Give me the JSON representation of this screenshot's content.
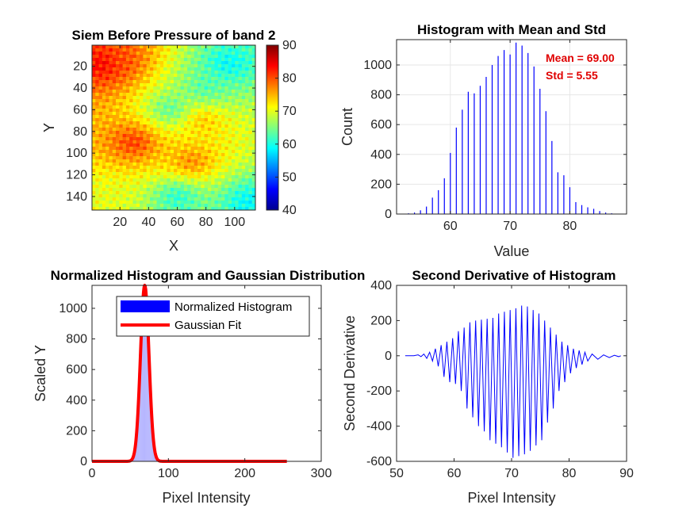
{
  "chart_data": [
    {
      "type": "heatmap",
      "title": "Siem Before Pressure of band 2",
      "xlabel": "X",
      "ylabel": "Y",
      "xlim": [
        0.5,
        114.5
      ],
      "ylim": [
        0.5,
        152.5
      ],
      "y_reversed": true,
      "xticks": [
        20,
        40,
        60,
        80,
        100
      ],
      "yticks": [
        20,
        40,
        60,
        80,
        100,
        120,
        140
      ],
      "colorbar": {
        "range": [
          40,
          90
        ],
        "ticks": [
          40,
          50,
          60,
          70,
          80,
          90
        ],
        "colormap": "jet"
      },
      "value_blobs": [
        {
          "x": 8,
          "y": 18,
          "value": 85
        },
        {
          "x": 20,
          "y": 15,
          "value": 80
        },
        {
          "x": 30,
          "y": 90,
          "value": 82
        },
        {
          "x": 70,
          "y": 108,
          "value": 78
        },
        {
          "x": 78,
          "y": 70,
          "value": 75
        },
        {
          "x": 95,
          "y": 18,
          "value": 58
        },
        {
          "x": 80,
          "y": 40,
          "value": 62
        },
        {
          "x": 55,
          "y": 60,
          "value": 62
        },
        {
          "x": 60,
          "y": 140,
          "value": 60
        },
        {
          "x": 110,
          "y": 145,
          "value": 58
        },
        {
          "x": 10,
          "y": 140,
          "value": 70
        }
      ]
    },
    {
      "type": "bar",
      "title": "Histogram with Mean and Std",
      "xlabel": "Value",
      "ylabel": "Count",
      "xlim": [
        51,
        89.5
      ],
      "ylim": [
        0,
        1170
      ],
      "xticks": [
        60,
        70,
        80
      ],
      "yticks": [
        0,
        200,
        400,
        600,
        800,
        1000
      ],
      "grid": true,
      "annotations": [
        "Mean = 69.00",
        "Std = 5.55"
      ],
      "x": [
        53,
        54,
        55,
        56,
        57,
        58,
        59,
        60,
        61,
        62,
        63,
        64,
        65,
        66,
        67,
        68,
        69,
        70,
        71,
        72,
        73,
        74,
        75,
        76,
        77,
        78,
        79,
        80,
        81,
        82,
        83,
        84,
        85,
        86,
        87
      ],
      "values": [
        5,
        10,
        25,
        50,
        110,
        160,
        240,
        410,
        580,
        700,
        820,
        810,
        860,
        920,
        1000,
        1060,
        1100,
        1070,
        1150,
        1130,
        1080,
        990,
        840,
        690,
        490,
        280,
        260,
        180,
        80,
        60,
        45,
        35,
        20,
        10,
        5
      ]
    },
    {
      "type": "line",
      "title": "Normalized Histogram and Gaussian Distribution",
      "xlabel": "Pixel Intensity",
      "ylabel": "Scaled Y",
      "xlim": [
        0,
        300
      ],
      "ylim": [
        0,
        1150
      ],
      "xticks": [
        0,
        100,
        200,
        300
      ],
      "yticks": [
        0,
        200,
        400,
        600,
        800,
        1000
      ],
      "legend": "top-right",
      "series": [
        {
          "name": "Normalized Histogram",
          "kind": "bars",
          "color": "#0000ff"
        },
        {
          "name": "Gaussian Fit",
          "kind": "line",
          "color": "#ff0000",
          "mean": 69,
          "std": 5.55,
          "peak": 1150,
          "x_range": [
            0,
            255
          ]
        }
      ]
    },
    {
      "type": "line",
      "title": "Second Derivative of Histogram",
      "xlabel": "Pixel Intensity",
      "ylabel": "Second Derivative",
      "xlim": [
        50,
        90
      ],
      "ylim": [
        -600,
        400
      ],
      "xticks": [
        50,
        60,
        70,
        80,
        90
      ],
      "yticks": [
        -600,
        -400,
        -200,
        0,
        200,
        400
      ],
      "series": [
        {
          "color": "#0000ff",
          "x": [
            51.5,
            53.5,
            54.5,
            55.5,
            56.5,
            57.5,
            58.5,
            59.5,
            60.5,
            61.5,
            62.5,
            63.5,
            64.5,
            65.5,
            66.5,
            67.5,
            68.5,
            69.5,
            70.5,
            71.5,
            72.5,
            73.5,
            74.5,
            75.5,
            76.5,
            77.5,
            78.5,
            79.5,
            80.5,
            81.5,
            82.5,
            83.5,
            85.5,
            87.5,
            89.0
          ],
          "pos": [
            0,
            5,
            10,
            20,
            40,
            60,
            80,
            100,
            140,
            160,
            190,
            200,
            205,
            210,
            215,
            240,
            250,
            260,
            270,
            285,
            280,
            260,
            240,
            200,
            160,
            120,
            80,
            60,
            40,
            30,
            20,
            10,
            5,
            3,
            0
          ],
          "neg": [
            0,
            -5,
            -15,
            -30,
            -60,
            -120,
            -150,
            -160,
            -200,
            -300,
            -350,
            -400,
            -430,
            -480,
            -500,
            -520,
            -550,
            -580,
            -570,
            -560,
            -540,
            -510,
            -480,
            -380,
            -300,
            -200,
            -150,
            -100,
            -70,
            -50,
            -30,
            -20,
            -10,
            -5,
            0
          ]
        }
      ]
    }
  ]
}
